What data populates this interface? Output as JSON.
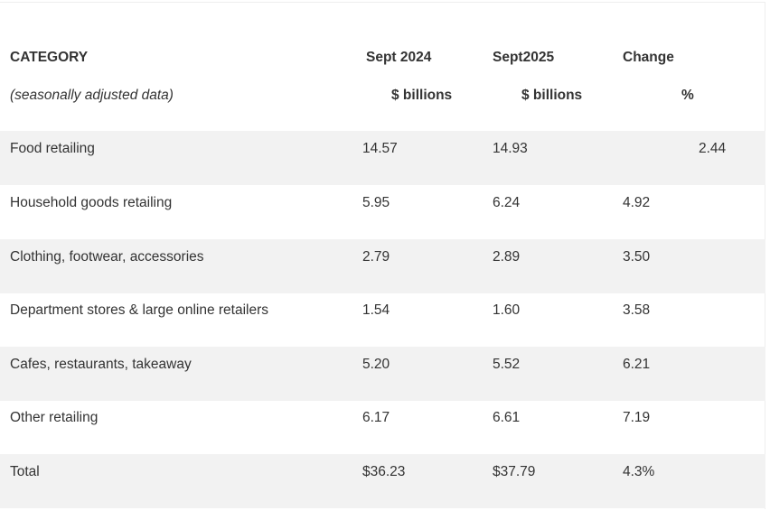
{
  "table": {
    "header": [
      [
        "CATEGORY",
        "Sept 2024",
        "Sept2025",
        "Change"
      ],
      [
        "(seasonally adjusted data)",
        "$ billions",
        "$ billions",
        "%"
      ]
    ],
    "rows": [
      [
        "Food retailing",
        "14.57",
        "14.93",
        "2.44"
      ],
      [
        "Household goods retailing",
        "5.95",
        "6.24",
        "4.92"
      ],
      [
        "Clothing, footwear, accessories",
        "2.79",
        "2.89",
        "3.50"
      ],
      [
        "Department stores & large online retailers",
        "1.54",
        "1.60",
        "3.58"
      ],
      [
        "Cafes, restaurants, takeaway",
        "5.20",
        "5.52",
        "6.21"
      ],
      [
        "Other retailing",
        "6.17",
        "6.61",
        "7.19"
      ],
      [
        "Total",
        "$36.23",
        "$37.79",
        "4.3%"
      ]
    ]
  }
}
